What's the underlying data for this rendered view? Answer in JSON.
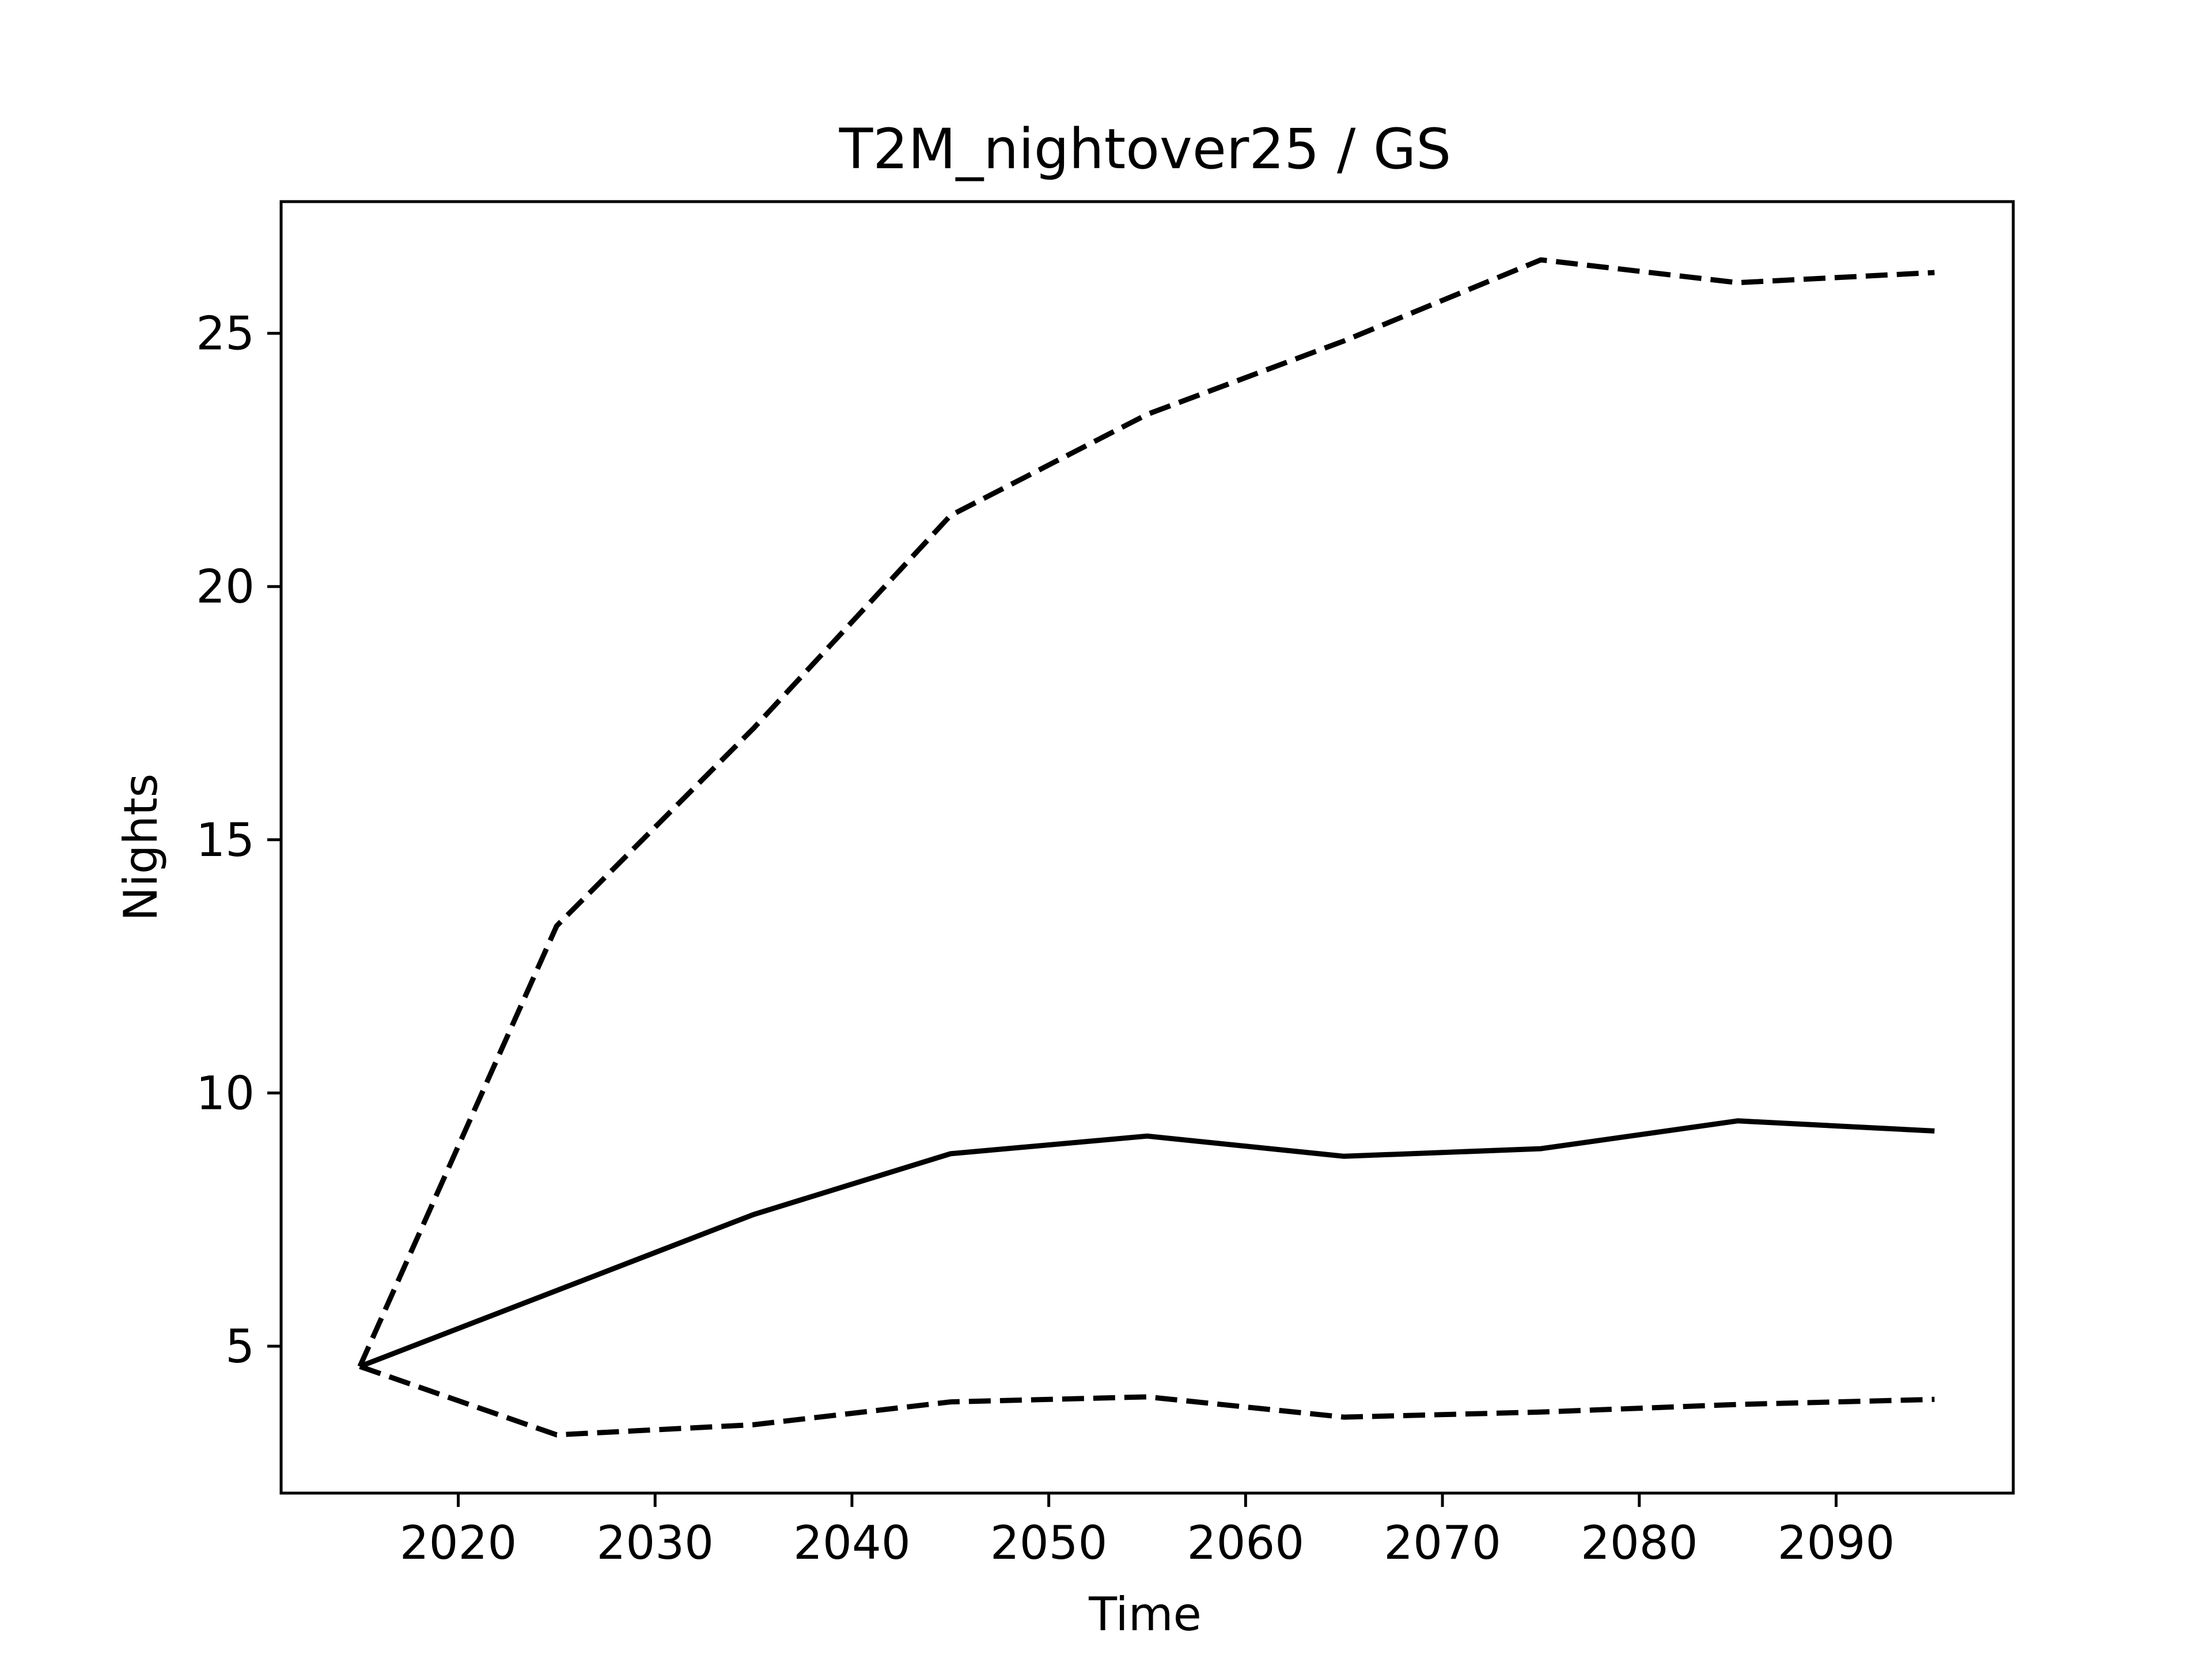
{
  "chart_data": {
    "type": "line",
    "title": "T2M_nightover25 / GS",
    "xlabel": "Time",
    "ylabel": "Nights",
    "xlim": [
      2011,
      2099
    ],
    "ylim": [
      2.1,
      27.6
    ],
    "xticks": [
      2020,
      2030,
      2040,
      2050,
      2060,
      2070,
      2080,
      2090
    ],
    "yticks": [
      5,
      10,
      15,
      20,
      25
    ],
    "grid": false,
    "x": [
      2015,
      2025,
      2035,
      2045,
      2055,
      2065,
      2075,
      2085,
      2095
    ],
    "series": [
      {
        "style": "solid",
        "color": "#000000",
        "values": [
          4.6,
          6.1,
          7.6,
          8.8,
          9.15,
          8.75,
          8.9,
          9.45,
          9.25
        ]
      },
      {
        "style": "dashed",
        "color": "#000000",
        "values": [
          4.6,
          13.3,
          17.2,
          21.4,
          23.4,
          24.85,
          26.45,
          26.0,
          26.2
        ]
      },
      {
        "style": "dashed",
        "color": "#000000",
        "values": [
          4.6,
          3.25,
          3.45,
          3.9,
          4.0,
          3.6,
          3.7,
          3.85,
          3.95
        ]
      }
    ]
  }
}
